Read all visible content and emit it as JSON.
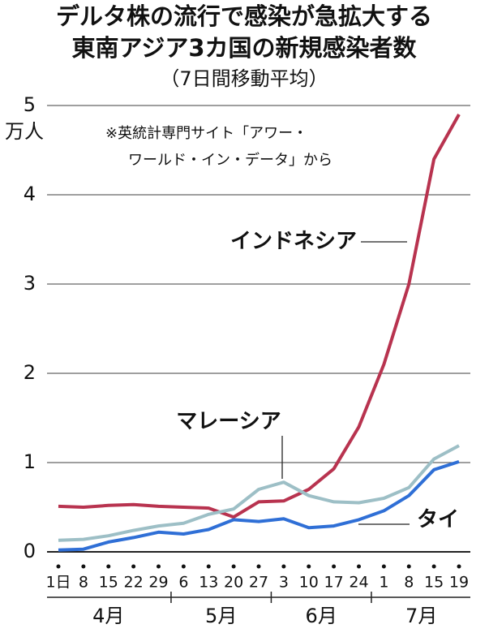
{
  "chart_data": {
    "type": "line",
    "title": "デルタ株の流行で感染が急拡大する",
    "title2": "東南アジア3カ国の新規感染者数",
    "subtitle": "（7日間移動平均）",
    "y_unit": "万人",
    "note": [
      "※英統計専門サイト「アワー・",
      "ワールド・イン・データ」から"
    ],
    "categories": [
      "1日",
      "8",
      "15",
      "22",
      "29",
      "6",
      "13",
      "20",
      "27",
      "3",
      "10",
      "17",
      "24",
      "1",
      "8",
      "15",
      "19"
    ],
    "x_groups": [
      {
        "label": "4月",
        "categories": [
          0,
          4
        ]
      },
      {
        "label": "5月",
        "categories": [
          5,
          8
        ]
      },
      {
        "label": "6月",
        "categories": [
          9,
          12
        ]
      },
      {
        "label": "7月",
        "categories": [
          13,
          16
        ]
      }
    ],
    "series": [
      {
        "name": "インドネシア",
        "color": "#b8334f",
        "values": [
          0.51,
          0.5,
          0.52,
          0.53,
          0.51,
          0.5,
          0.49,
          0.39,
          0.56,
          0.57,
          0.7,
          0.93,
          1.4,
          2.1,
          3.0,
          4.4,
          4.9
        ]
      },
      {
        "name": "マレーシア",
        "color": "#9dbfc6",
        "values": [
          0.13,
          0.14,
          0.18,
          0.24,
          0.29,
          0.32,
          0.42,
          0.48,
          0.7,
          0.78,
          0.63,
          0.56,
          0.55,
          0.6,
          0.72,
          1.04,
          1.19
        ]
      },
      {
        "name": "タイ",
        "color": "#2f6fd6",
        "values": [
          0.02,
          0.03,
          0.11,
          0.16,
          0.22,
          0.2,
          0.25,
          0.36,
          0.34,
          0.37,
          0.27,
          0.29,
          0.36,
          0.46,
          0.63,
          0.92,
          1.01
        ]
      }
    ],
    "ylim": [
      0,
      5
    ],
    "yticks": [
      0,
      1,
      2,
      3,
      4,
      5
    ],
    "grid": true
  }
}
